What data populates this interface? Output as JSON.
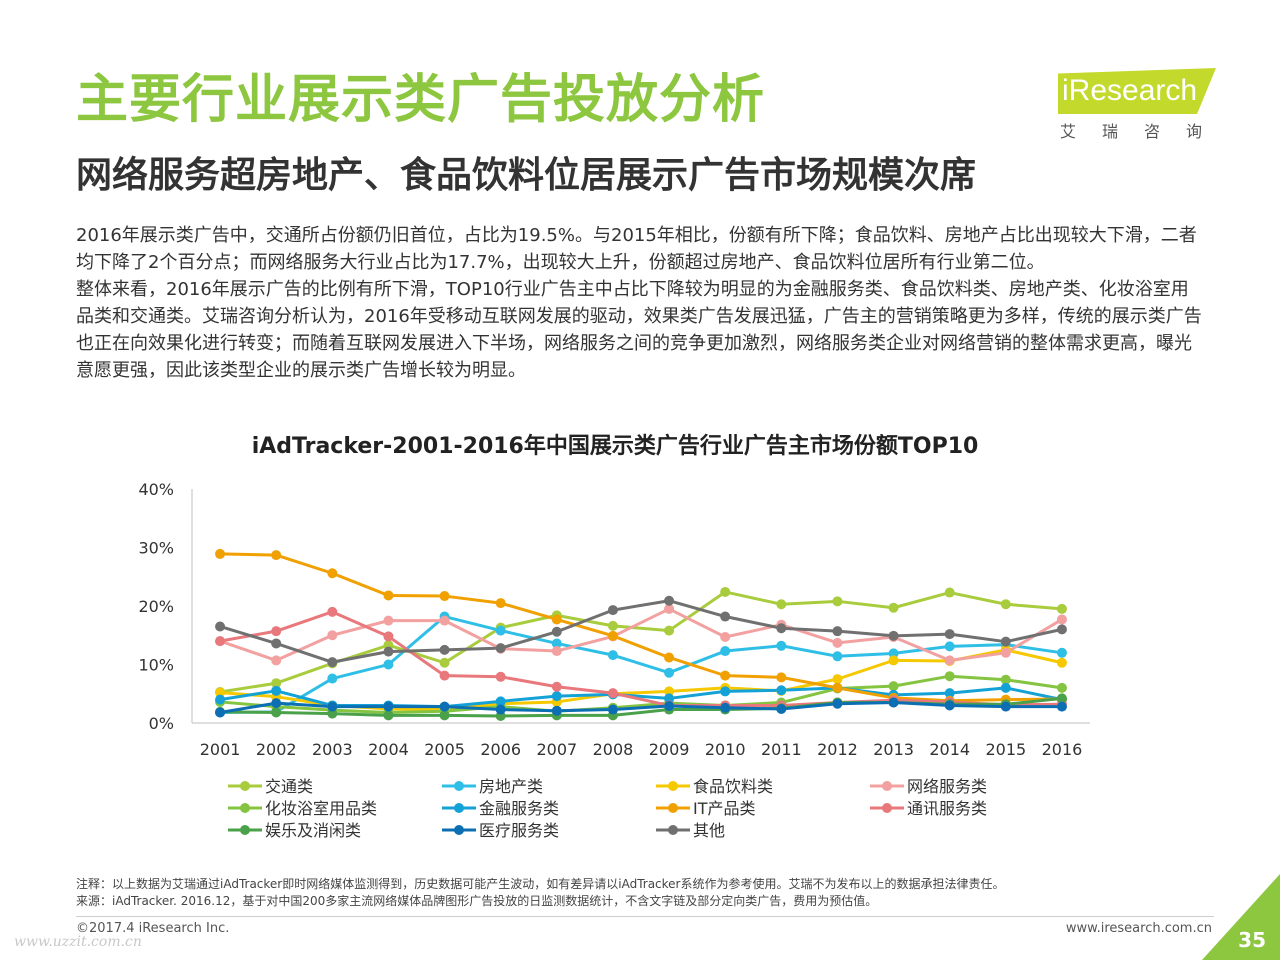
{
  "header": {
    "title": "主要行业展示类广告投放分析",
    "subtitle": "网络服务超房地产、食品饮料位居展示广告市场规模次席"
  },
  "logo": {
    "name": "iResearch",
    "cn": "艾瑞咨询",
    "color": "#c3d92b"
  },
  "body": {
    "paragraph1": "2016年展示类广告中，交通所占份额仍旧首位，占比为19.5%。与2015年相比，份额有所下降；食品饮料、房地产占比出现较大下滑，二者均下降了2个百分点；而网络服务大行业占比为17.7%，出现较大上升，份额超过房地产、食品饮料位居所有行业第二位。",
    "paragraph2": "整体来看，2016年展示广告的比例有所下滑，TOP10行业广告主中占比下降较为明显的为金融服务类、食品饮料类、房地产类、化妆浴室用品类和交通类。艾瑞咨询分析认为，2016年受移动互联网发展的驱动，效果类广告发展迅猛，广告主的营销策略更为多样，传统的展示类广告也正在向效果化进行转变；而随着互联网发展进入下半场，网络服务之间的竞争更加激烈，网络服务类企业对网络营销的整体需求更高，曝光意愿更强，因此该类型企业的展示类广告增长较为明显。"
  },
  "chart_data": {
    "type": "line",
    "title": "iAdTracker-2001-2016年中国展示类广告行业广告主市场份额TOP10",
    "x": [
      "2001",
      "2002",
      "2003",
      "2004",
      "2005",
      "2006",
      "2007",
      "2008",
      "2009",
      "2010",
      "2011",
      "2012",
      "2013",
      "2014",
      "2015",
      "2016"
    ],
    "ylim": [
      0,
      40
    ],
    "yticks": [
      "0%",
      "10%",
      "20%",
      "30%",
      "40%"
    ],
    "legend_position": "bottom",
    "grid": false,
    "series": [
      {
        "name": "交通类",
        "color": "#a8cc3c",
        "values": [
          5.3,
          6.8,
          10.2,
          13.3,
          10.3,
          16.3,
          18.4,
          16.6,
          15.8,
          22.4,
          20.3,
          20.8,
          19.7,
          22.3,
          20.3,
          19.5
        ]
      },
      {
        "name": "房地产类",
        "color": "#2fbfe6",
        "values": [
          1.8,
          1.9,
          7.6,
          10.0,
          18.2,
          15.8,
          13.6,
          11.6,
          8.6,
          12.3,
          13.2,
          11.4,
          11.9,
          13.1,
          13.4,
          12.0
        ]
      },
      {
        "name": "食品饮料类",
        "color": "#f5c800",
        "values": [
          5.2,
          4.5,
          3.0,
          2.4,
          2.3,
          3.3,
          3.6,
          5.0,
          5.4,
          6.0,
          5.5,
          7.5,
          10.7,
          10.6,
          12.5,
          10.3
        ]
      },
      {
        "name": "网络服务类",
        "color": "#f2a0a0",
        "values": [
          14.0,
          10.7,
          15.0,
          17.5,
          17.5,
          12.7,
          12.3,
          14.8,
          19.5,
          14.7,
          16.8,
          13.7,
          14.7,
          10.7,
          12.0,
          17.7
        ]
      },
      {
        "name": "化妆浴室用品类",
        "color": "#84c441",
        "values": [
          3.6,
          2.8,
          2.2,
          1.8,
          2.0,
          2.8,
          2.0,
          2.6,
          3.4,
          3.0,
          3.5,
          5.9,
          6.3,
          8.0,
          7.4,
          6.0
        ]
      },
      {
        "name": "金融服务类",
        "color": "#14a2d6",
        "values": [
          4.0,
          5.5,
          3.0,
          3.0,
          2.8,
          3.7,
          4.6,
          4.9,
          4.2,
          5.4,
          5.6,
          6.0,
          4.8,
          5.1,
          6.0,
          4.0
        ]
      },
      {
        "name": "IT产品类",
        "color": "#f0a000",
        "values": [
          28.9,
          28.7,
          25.6,
          21.8,
          21.7,
          20.5,
          17.7,
          14.9,
          11.2,
          8.1,
          7.8,
          6.0,
          4.3,
          3.8,
          4.0,
          4.1
        ]
      },
      {
        "name": "通讯服务类",
        "color": "#e8787b",
        "values": [
          14.0,
          15.7,
          19.0,
          14.8,
          8.1,
          7.9,
          6.2,
          5.1,
          3.0,
          3.0,
          3.0,
          3.5,
          3.9,
          3.6,
          3.1,
          3.2
        ]
      },
      {
        "name": "娱乐及消闲类",
        "color": "#4aa14a",
        "values": [
          1.9,
          1.8,
          1.6,
          1.3,
          1.3,
          1.2,
          1.3,
          1.3,
          2.3,
          2.3,
          2.5,
          3.5,
          3.5,
          3.2,
          3.2,
          4.2
        ]
      },
      {
        "name": "医疗服务类",
        "color": "#0d6fb3",
        "values": [
          1.8,
          3.4,
          2.8,
          2.8,
          2.8,
          2.3,
          2.1,
          2.3,
          2.9,
          2.6,
          2.4,
          3.3,
          3.5,
          3.0,
          2.8,
          2.8
        ]
      },
      {
        "name": "其他",
        "color": "#707070",
        "values": [
          16.5,
          13.6,
          10.4,
          12.2,
          12.5,
          12.8,
          15.6,
          19.3,
          20.9,
          18.2,
          16.2,
          15.7,
          14.9,
          15.2,
          13.9,
          16.0
        ]
      }
    ]
  },
  "notes": {
    "note": "注释：以上数据为艾瑞通过iAdTracker即时网络媒体监测得到，历史数据可能产生波动，如有差异请以iAdTracker系统作为参考使用。艾瑞不为发布以上的数据承担法律责任。",
    "source": "来源：iAdTracker. 2016.12，基于对中国200多家主流网络媒体品牌图形广告投放的日监测数据统计，不含文字链及部分定向类广告，费用为预估值。"
  },
  "footer": {
    "copyright": "©2017.4 iResearch Inc.",
    "website": "www.iresearch.com.cn",
    "page_number": "35",
    "watermark": "www.uzzit.com.cn",
    "accent": "#8dc63f"
  }
}
